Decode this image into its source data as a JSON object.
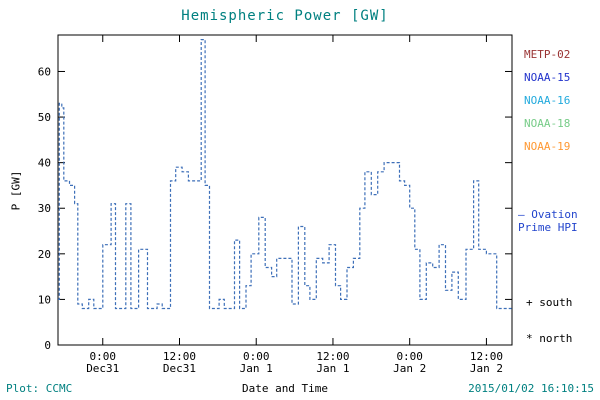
{
  "title": "Hemispheric Power [GW]",
  "accent_color": "#008080",
  "legend": {
    "items": [
      {
        "label": "METP-02",
        "color": "#993333"
      },
      {
        "label": "NOAA-15",
        "color": "#2233cc"
      },
      {
        "label": "NOAA-16",
        "color": "#22aadd"
      },
      {
        "label": "NOAA-18",
        "color": "#77cc88"
      },
      {
        "label": "NOAA-19",
        "color": "#ff9933"
      }
    ]
  },
  "annotations": {
    "ovation_line1": "– Ovation",
    "ovation_line2": "Prime HPI",
    "ovation_color": "#2244cc",
    "south": "+ south",
    "north": "* north"
  },
  "footer": {
    "plot_credit": "Plot: CCMC",
    "xlabel": "Date and Time",
    "timestamp": "2015/01/02 16:10:15"
  },
  "chart_data": {
    "type": "line",
    "style": "step-dashed",
    "line_color": "#3d6fb8",
    "title": "Hemispheric Power [GW]",
    "xlabel": "Date and Time",
    "ylabel": "P [GW]",
    "ylim": [
      0,
      68
    ],
    "yticks": [
      0,
      10,
      20,
      30,
      40,
      50,
      60
    ],
    "xlim_hours": [
      -7,
      64
    ],
    "xticks": [
      {
        "h": 0,
        "line1": "0:00",
        "line2": "Dec31"
      },
      {
        "h": 12,
        "line1": "12:00",
        "line2": "Dec31"
      },
      {
        "h": 24,
        "line1": "0:00",
        "line2": "Jan 1"
      },
      {
        "h": 36,
        "line1": "12:00",
        "line2": "Jan 1"
      },
      {
        "h": 48,
        "line1": "0:00",
        "line2": "Jan 2"
      },
      {
        "h": 60,
        "line1": "12:00",
        "line2": "Jan 2"
      }
    ],
    "points": [
      [
        -7,
        10
      ],
      [
        -6.8,
        53
      ],
      [
        -6.4,
        52
      ],
      [
        -6.1,
        36
      ],
      [
        -5.2,
        35
      ],
      [
        -4.4,
        31
      ],
      [
        -3.9,
        9
      ],
      [
        -3.2,
        8
      ],
      [
        -2.2,
        10
      ],
      [
        -1.4,
        8
      ],
      [
        0,
        22
      ],
      [
        1.3,
        31
      ],
      [
        2,
        8
      ],
      [
        3.6,
        31
      ],
      [
        4.4,
        8
      ],
      [
        5.6,
        21
      ],
      [
        7,
        8
      ],
      [
        8.5,
        9
      ],
      [
        9.3,
        8
      ],
      [
        10.6,
        36
      ],
      [
        11.4,
        39
      ],
      [
        12.4,
        38
      ],
      [
        13.4,
        36
      ],
      [
        15.4,
        67
      ],
      [
        16,
        35
      ],
      [
        16.7,
        8
      ],
      [
        18.2,
        10
      ],
      [
        19,
        8
      ],
      [
        20.6,
        23
      ],
      [
        21.4,
        8
      ],
      [
        22.4,
        13
      ],
      [
        23.2,
        20
      ],
      [
        24.4,
        28
      ],
      [
        25.4,
        17
      ],
      [
        26.4,
        15
      ],
      [
        27.2,
        19
      ],
      [
        28.6,
        19
      ],
      [
        29.6,
        9
      ],
      [
        30.6,
        26
      ],
      [
        31.6,
        13
      ],
      [
        32.4,
        10
      ],
      [
        33.4,
        19
      ],
      [
        34.4,
        18
      ],
      [
        35.4,
        22
      ],
      [
        36.4,
        13
      ],
      [
        37.2,
        10
      ],
      [
        38.2,
        17
      ],
      [
        39.2,
        19
      ],
      [
        40.2,
        30
      ],
      [
        41,
        38
      ],
      [
        42,
        33
      ],
      [
        43,
        38
      ],
      [
        44,
        40
      ],
      [
        45.2,
        40
      ],
      [
        46.4,
        36
      ],
      [
        47.2,
        35
      ],
      [
        48,
        30
      ],
      [
        48.8,
        21
      ],
      [
        49.6,
        10
      ],
      [
        50.6,
        18
      ],
      [
        51.6,
        17
      ],
      [
        52.6,
        22
      ],
      [
        53.6,
        12
      ],
      [
        54.6,
        16
      ],
      [
        55.6,
        10
      ],
      [
        56.8,
        21
      ],
      [
        58,
        36
      ],
      [
        58.8,
        21
      ],
      [
        60,
        20
      ],
      [
        61.6,
        8
      ],
      [
        64,
        8
      ]
    ]
  }
}
